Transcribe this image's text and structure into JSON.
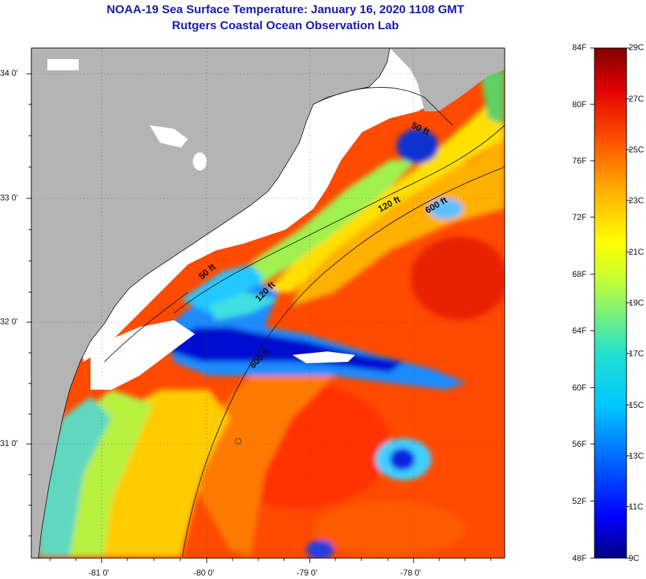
{
  "title_line1": "NOAA-19 Sea Surface Temperature:  January 16, 2020 1108 GMT",
  "title_line2": "Rutgers Coastal Ocean Observation Lab",
  "lat_labels": [
    "34 0'",
    "33 0'",
    "32 0'",
    "31 0'"
  ],
  "lon_labels": [
    "-81 0'",
    "-80 0'",
    "-79 0'",
    "-78 0'"
  ],
  "contours": [
    {
      "label": "50 ft"
    },
    {
      "label": "120 ft"
    },
    {
      "label": "600 ft"
    },
    {
      "label": "50 ft"
    },
    {
      "label": "120 ft"
    },
    {
      "label": "600 ft"
    }
  ],
  "colorbar": {
    "fahrenheit": [
      "84F",
      "80F",
      "76F",
      "72F",
      "68F",
      "64F",
      "60F",
      "56F",
      "52F",
      "48F"
    ],
    "celsius": [
      "29C",
      "27C",
      "25C",
      "23C",
      "21C",
      "19C",
      "17C",
      "15C",
      "13C",
      "11C",
      "9C"
    ]
  },
  "colors": {
    "land": "#b4b4b4",
    "cloud": "#ffffff",
    "title": "#1a1ab0"
  }
}
